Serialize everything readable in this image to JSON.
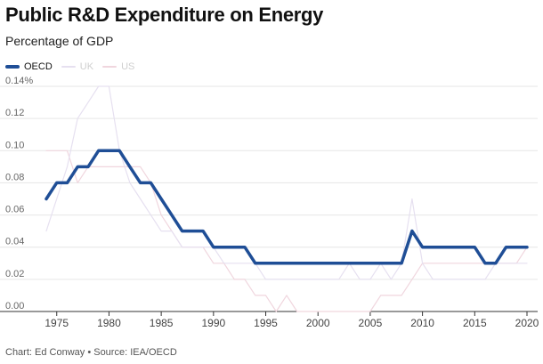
{
  "title": "Public R&D Expenditure on Energy",
  "subtitle": "Percentage of GDP",
  "footer": "Chart: Ed Conway • Source: IEA/OECD",
  "legend": [
    {
      "name": "OECD",
      "color": "#1f4e96"
    },
    {
      "name": "UK",
      "color": "#ece7f3"
    },
    {
      "name": "US",
      "color": "#f0dbe1"
    }
  ],
  "chart_data": {
    "type": "line",
    "ylim": [
      0,
      0.14
    ],
    "xlim": [
      1974,
      2020
    ],
    "y_ticks": [
      "0.00",
      "0.02",
      "0.04",
      "0.06",
      "0.08",
      "0.10",
      "0.12",
      "0.14%"
    ],
    "x_ticks": [
      "1975",
      "1980",
      "1985",
      "1990",
      "1995",
      "2000",
      "2005",
      "2010",
      "2015",
      "2020"
    ],
    "grid": true,
    "legend_position": "top-left",
    "x": [
      1974,
      1975,
      1976,
      1977,
      1978,
      1979,
      1980,
      1981,
      1982,
      1983,
      1984,
      1985,
      1986,
      1987,
      1988,
      1989,
      1990,
      1991,
      1992,
      1993,
      1994,
      1995,
      1996,
      1997,
      1998,
      1999,
      2000,
      2001,
      2002,
      2003,
      2004,
      2005,
      2006,
      2007,
      2008,
      2009,
      2010,
      2011,
      2012,
      2013,
      2014,
      2015,
      2016,
      2017,
      2018,
      2019,
      2020
    ],
    "series": [
      {
        "name": "OECD",
        "color": "#1f4e96",
        "width": 3.5,
        "values": [
          0.07,
          0.08,
          0.08,
          0.09,
          0.09,
          0.1,
          0.1,
          0.1,
          0.09,
          0.08,
          0.08,
          0.07,
          0.06,
          0.05,
          0.05,
          0.05,
          0.04,
          0.04,
          0.04,
          0.04,
          0.03,
          0.03,
          0.03,
          0.03,
          0.03,
          0.03,
          0.03,
          0.03,
          0.03,
          0.03,
          0.03,
          0.03,
          0.03,
          0.03,
          0.03,
          0.05,
          0.04,
          0.04,
          0.04,
          0.04,
          0.04,
          0.04,
          0.03,
          0.03,
          0.04,
          0.04,
          0.04
        ]
      },
      {
        "name": "UK",
        "color": "#e6e0f0",
        "width": 1.2,
        "values": [
          0.05,
          0.07,
          0.09,
          0.12,
          0.13,
          0.14,
          0.14,
          0.1,
          0.08,
          0.07,
          0.06,
          0.05,
          0.05,
          0.04,
          0.04,
          0.04,
          0.04,
          0.03,
          0.03,
          0.03,
          0.03,
          0.02,
          0.02,
          0.02,
          0.02,
          0.02,
          0.02,
          0.02,
          0.02,
          0.03,
          0.02,
          0.02,
          0.03,
          0.02,
          0.03,
          0.07,
          0.03,
          0.02,
          0.02,
          0.02,
          0.02,
          0.02,
          0.02,
          0.03,
          0.03,
          0.03,
          0.03
        ]
      },
      {
        "name": "US",
        "color": "#f0d6de",
        "width": 1.2,
        "values": [
          0.1,
          0.1,
          0.1,
          0.08,
          0.09,
          0.09,
          0.09,
          0.09,
          0.09,
          0.09,
          0.08,
          0.06,
          0.05,
          0.04,
          0.04,
          0.04,
          0.03,
          0.03,
          0.02,
          0.02,
          0.01,
          0.01,
          0.0,
          0.01,
          0.0,
          0.0,
          0.0,
          0.0,
          0.0,
          0.0,
          0.0,
          0.0,
          0.01,
          0.01,
          0.01,
          0.02,
          0.03,
          0.03,
          0.03,
          0.03,
          0.03,
          0.03,
          0.03,
          0.03,
          0.03,
          0.03,
          0.04
        ]
      }
    ]
  }
}
